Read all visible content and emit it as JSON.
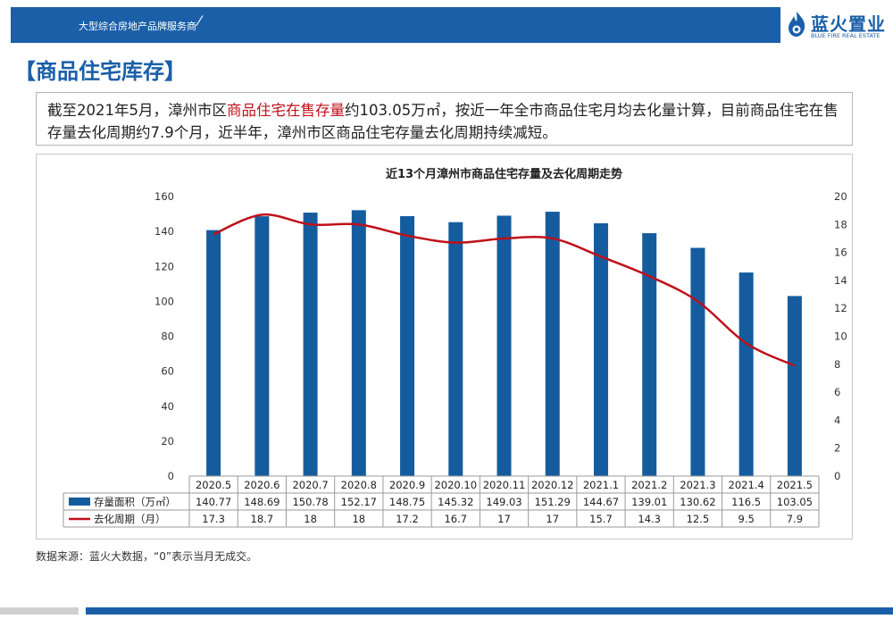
{
  "header": {
    "tagline": "大型综合房地产品牌服务商"
  },
  "logo": {
    "name": "蓝火置业",
    "subtitle": "BLUE FIRE REAL ESTATE"
  },
  "section": {
    "title": "【商品住宅库存】"
  },
  "summary": {
    "part1": "截至2021年5月，漳州市区",
    "highlight": "商品住宅在售存量",
    "part2": "约103.05万㎡，按近一年全市商品住宅月均去化量计算，目前商品住宅在售存量去化周期约7.9个月，近半年，漳州市区商品住宅存量去化周期持续减短。"
  },
  "source_note": "数据来源：蓝火大数据，“0”表示当月无成交。",
  "colors": {
    "brand_blue": "#1a5fa8",
    "bar_blue": "#155c9e",
    "line_red": "#c0101a",
    "highlight_red": "#c0101a"
  },
  "chart_data": {
    "type": "bar",
    "title": "近13个月漳州市商品住宅存量及去化周期走势",
    "categories": [
      "2020.5",
      "2020.6",
      "2020.7",
      "2020.8",
      "2020.9",
      "2020.10",
      "2020.11",
      "2020.12",
      "2021.1",
      "2021.2",
      "2021.3",
      "2021.4",
      "2021.5"
    ],
    "series": [
      {
        "name": "存量面积（万㎡）",
        "type": "bar",
        "axis": "left",
        "values": [
          140.77,
          148.69,
          150.78,
          152.17,
          148.75,
          145.32,
          149.03,
          151.29,
          144.67,
          139.01,
          130.62,
          116.5,
          103.05
        ]
      },
      {
        "name": "去化周期（月）",
        "type": "line",
        "axis": "right",
        "values": [
          17.3,
          18.7,
          18,
          18,
          17.2,
          16.7,
          17,
          17,
          15.7,
          14.3,
          12.5,
          9.5,
          7.9
        ]
      }
    ],
    "y_left": {
      "min": 0,
      "max": 160,
      "ticks": [
        0,
        20,
        40,
        60,
        80,
        100,
        120,
        140,
        160
      ]
    },
    "y_right": {
      "min": 0,
      "max": 20,
      "ticks": [
        0,
        2,
        4,
        6,
        8,
        10,
        12,
        14,
        16,
        18,
        20
      ]
    },
    "data_table": true,
    "grid": false
  }
}
